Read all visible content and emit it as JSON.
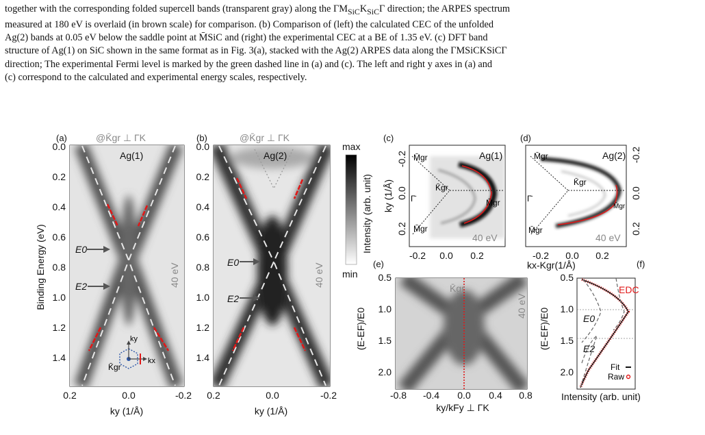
{
  "caption": {
    "line1": "together with the corresponding folded supercell bands (transparent gray) along the ΓM",
    "line1_sub": "SiC",
    "line1_b": "K",
    "line1_sub2": "SiC",
    "line1_c": "Γ direction; the ARPES spectrum",
    "line2": "measured at 180 eV is overlaid (in brown scale) for comparison. (b) Comparison of (left) the calculated CEC of the unfolded",
    "line3": "Ag(2) bands at 0.05 eV below the saddle point at M̄SiC and (right) the experimental CEC at a BE of 1.35 eV. (c) DFT band",
    "line4": "structure of Ag(1) on SiC shown in the same format as in Fig. 3(a), stacked with the Ag(2) ARPES data along the ΓMSiCKSiCΓ",
    "line5": "direction; The experimental Fermi level is marked by the green dashed line in (a) and (c). The left and right y axes in (a) and",
    "line6": "(c) correspond to the calculated and experimental energy scales, respectively."
  },
  "panels": {
    "a": {
      "letter": "(a)",
      "header": "@K̄gr ⊥ ΓK",
      "band": "Ag(1)",
      "photon": "40 eV",
      "E0": "E0",
      "E2": "E2",
      "kx": "kx",
      "ky": "ky",
      "kgr": "K̄gr",
      "xlabel": "ky (1/Å)",
      "ylabel": "Binding Energy (eV)"
    },
    "b": {
      "letter": "(b)",
      "header": "@K̄gr ⊥ ΓK",
      "band": "Ag(2)",
      "photon": "40 eV",
      "E0": "E0",
      "E2": "E2",
      "xlabel": "ky (1/Å)"
    },
    "colorbar": {
      "max": "max",
      "min": "min",
      "label": "Intensity (arb. unit)"
    },
    "c": {
      "letter": "(c)",
      "band": "Ag(1)",
      "photon": "40 eV",
      "ylabel": "ky (1/Å)",
      "m1": "M̄gr",
      "m2": "M̄gr",
      "m3": "M̄gr",
      "k": "K̄gr",
      "g": "Γ̄"
    },
    "d": {
      "letter": "(d)",
      "band": "Ag(2)",
      "photon": "40 eV",
      "m1": "M̄gr",
      "m2": "M̄gr",
      "m3": "M̄gr",
      "k": "K̄gr",
      "g": "Γ̄",
      "xlabel": "kx-Kgr(1/Å)"
    },
    "e": {
      "letter": "(e)",
      "top": "K̄gr",
      "photon": "40 eV",
      "xlabel": "ky/kFy ⊥ ΓK",
      "ylabel": "(E-EF)/E0"
    },
    "f": {
      "letter": "(f)",
      "title": "EDC",
      "E0": "E0",
      "E2": "E2",
      "fit": "Fit",
      "raw": "Raw",
      "xlabel": "Intensity (arb. unit)",
      "ylabel": "(E-EF)/E0"
    }
  },
  "ticks": {
    "ab_y": [
      "0.0",
      "0.2",
      "0.4",
      "0.6",
      "0.8",
      "1.0",
      "1.2",
      "1.4"
    ],
    "ab_x": [
      "0.2",
      "0.0",
      "-0.2"
    ],
    "cd_x": [
      "-0.2",
      "0.0",
      "0.2"
    ],
    "c_y": [
      "-0.2",
      "0.0",
      "0.2"
    ],
    "d_y": [
      "-0.2",
      "0.0",
      "0.2"
    ],
    "e_x": [
      "-0.8",
      "-0.4",
      "0.0",
      "0.4",
      "0.8"
    ],
    "e_y": [
      "0.5",
      "1.0",
      "1.5",
      "2.0"
    ],
    "f_y": [
      "0.5",
      "1.0",
      "1.5",
      "2.0"
    ]
  }
}
